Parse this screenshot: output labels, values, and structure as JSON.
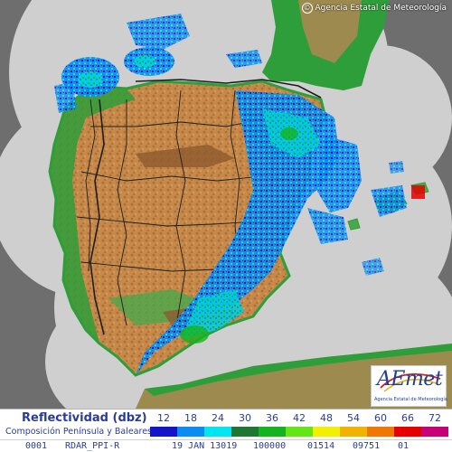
{
  "header": {
    "copyright_symbol": "©",
    "copyright_text": "Agencia Estatal de Meteorología"
  },
  "logo": {
    "letter": "A",
    "word": "Emet",
    "subtitle": "Agencia Estatal de Meteorología"
  },
  "legend": {
    "title": "Reflectividad (dbz)",
    "subtitle": "Composición Península y Baleares",
    "scale": [
      {
        "label": "12",
        "color": "#1414c8"
      },
      {
        "label": "18",
        "color": "#0a8cf0"
      },
      {
        "label": "24",
        "color": "#00e6f0"
      },
      {
        "label": "30",
        "color": "#1e7832"
      },
      {
        "label": "36",
        "color": "#14b41e"
      },
      {
        "label": "42",
        "color": "#64e614"
      },
      {
        "label": "48",
        "color": "#f0f000"
      },
      {
        "label": "54",
        "color": "#f0b400"
      },
      {
        "label": "60",
        "color": "#f07800"
      },
      {
        "label": "66",
        "color": "#e60000"
      },
      {
        "label": "72",
        "color": "#c80078"
      }
    ]
  },
  "status": {
    "product_id": "0001",
    "product": "RDAR_PPI-R",
    "date": "19 JAN 13019",
    "code1": "100000",
    "code2": "01514",
    "code3": "09751",
    "code4": "01"
  },
  "map_colors": {
    "outside_coverage": "#6e6e6e",
    "coverage_area": "#cfcfcf",
    "lowland": "#2e9e3a",
    "hills": "#9c8a4e",
    "plateau": "#c7894a",
    "mountains": "#8e5a2e",
    "borders": "#1e1e1e"
  }
}
